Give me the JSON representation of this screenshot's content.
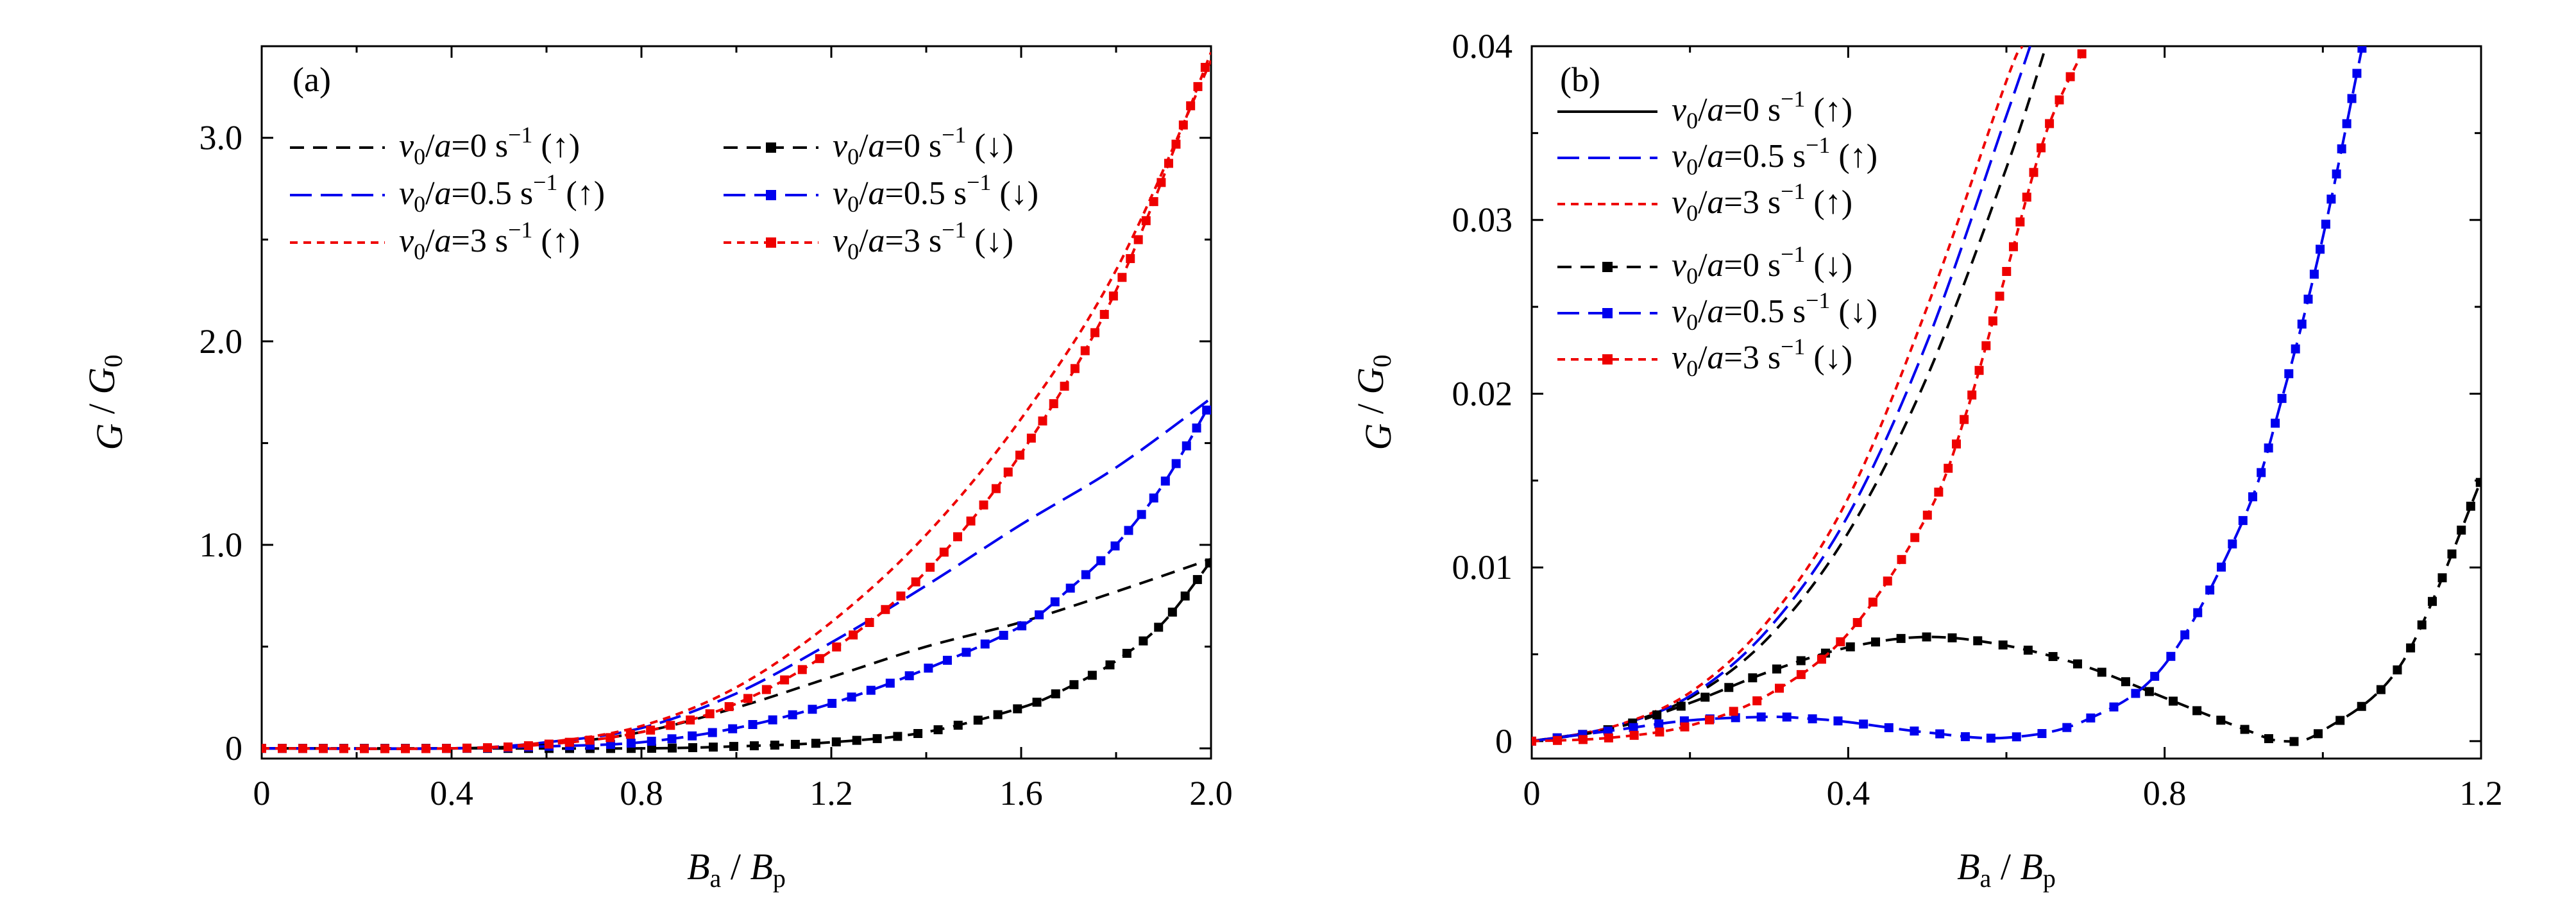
{
  "chart_data": [
    {
      "type": "line",
      "panel_label": "(a)",
      "xlabel": "B_a / B_p",
      "ylabel": "G / G_0",
      "xlim": [
        0,
        2.0
      ],
      "ylim": [
        -0.05,
        3.45
      ],
      "x_ticks": [
        "0",
        "0.4",
        "0.8",
        "1.2",
        "1.6",
        "2.0"
      ],
      "y_ticks": [
        "0",
        "1.0",
        "2.0",
        "3.0"
      ],
      "x_tick_values": [
        0,
        0.4,
        0.8,
        1.2,
        1.6,
        2.0
      ],
      "y_tick_values": [
        0,
        1.0,
        2.0,
        3.0
      ],
      "legend": [
        {
          "label": "v_0/a=0 s^-1 (↑)",
          "color": "#000000",
          "style": "dashed",
          "marker": false
        },
        {
          "label": "v_0/a=0.5 s^-1 (↑)",
          "color": "#0000ee",
          "style": "longdash",
          "marker": false
        },
        {
          "label": "v_0/a=3 s^-1 (↑)",
          "color": "#ee0000",
          "style": "shortdash",
          "marker": false
        },
        {
          "label": "v_0/a=0 s^-1 (↓)",
          "color": "#000000",
          "style": "dashed",
          "marker": true
        },
        {
          "label": "v_0/a=0.5 s^-1 (↓)",
          "color": "#0000ee",
          "style": "longdash",
          "marker": true
        },
        {
          "label": "v_0/a=3 s^-1 (↓)",
          "color": "#ee0000",
          "style": "shortdash",
          "marker": true
        }
      ],
      "series": [
        {
          "color": "#000000",
          "style": "dashed",
          "marker": false,
          "x": [
            0,
            0.4,
            0.6,
            0.8,
            1.0,
            1.2,
            1.4,
            1.6,
            1.8,
            2.0
          ],
          "y": [
            0,
            0.0,
            0.02,
            0.08,
            0.2,
            0.35,
            0.5,
            0.62,
            0.77,
            0.93
          ]
        },
        {
          "color": "#0000ee",
          "style": "longdash",
          "marker": false,
          "x": [
            0,
            0.4,
            0.6,
            0.8,
            1.0,
            1.2,
            1.4,
            1.6,
            1.8,
            2.0
          ],
          "y": [
            0,
            0.0,
            0.03,
            0.1,
            0.27,
            0.52,
            0.8,
            1.1,
            1.38,
            1.72
          ]
        },
        {
          "color": "#ee0000",
          "style": "shortdash",
          "marker": false,
          "x": [
            0,
            0.4,
            0.6,
            0.8,
            1.0,
            1.2,
            1.4,
            1.6,
            1.8,
            2.0
          ],
          "y": [
            0,
            0.0,
            0.03,
            0.11,
            0.3,
            0.62,
            1.05,
            1.62,
            2.35,
            3.38
          ]
        },
        {
          "color": "#000000",
          "style": "dashed",
          "marker": true,
          "x": [
            0,
            0.4,
            0.8,
            1.0,
            1.2,
            1.4,
            1.6,
            1.7,
            1.8,
            1.9,
            2.0
          ],
          "y": [
            0,
            0.0,
            0.0,
            0.01,
            0.03,
            0.08,
            0.2,
            0.3,
            0.43,
            0.62,
            0.92
          ]
        },
        {
          "color": "#0000ee",
          "style": "longdash",
          "marker": true,
          "x": [
            0,
            0.4,
            0.6,
            0.8,
            1.0,
            1.2,
            1.4,
            1.6,
            1.7,
            1.8,
            1.9,
            2.0
          ],
          "y": [
            0,
            0.0,
            0.01,
            0.03,
            0.1,
            0.22,
            0.39,
            0.6,
            0.78,
            1.0,
            1.3,
            1.7
          ]
        },
        {
          "color": "#ee0000",
          "style": "shortdash",
          "marker": true,
          "x": [
            0,
            0.4,
            0.6,
            0.8,
            1.0,
            1.2,
            1.4,
            1.6,
            1.8,
            2.0
          ],
          "y": [
            0,
            0.0,
            0.02,
            0.08,
            0.22,
            0.48,
            0.87,
            1.45,
            2.25,
            3.42
          ]
        }
      ]
    },
    {
      "type": "line",
      "panel_label": "(b)",
      "xlabel": "B_a / B_p",
      "ylabel": "G / G_0",
      "xlim": [
        0,
        1.2
      ],
      "ylim": [
        -0.001,
        0.04
      ],
      "x_ticks": [
        "0",
        "0.4",
        "0.8",
        "1.2"
      ],
      "y_ticks": [
        "0",
        "0.01",
        "0.02",
        "0.03",
        "0.04"
      ],
      "x_tick_values": [
        0,
        0.4,
        0.8,
        1.2
      ],
      "y_tick_values": [
        0,
        0.01,
        0.02,
        0.03,
        0.04
      ],
      "legend": [
        {
          "label": "v_0/a=0 s^-1 (↑)",
          "color": "#000000",
          "style": "solid",
          "marker": false
        },
        {
          "label": "v_0/a=0.5 s^-1 (↑)",
          "color": "#0000ee",
          "style": "longdash",
          "marker": false
        },
        {
          "label": "v_0/a=3 s^-1 (↑)",
          "color": "#ee0000",
          "style": "shortdash",
          "marker": false
        },
        {
          "label": "v_0/a=0 s^-1(↓)",
          "color": "#000000",
          "style": "dashed",
          "marker": true
        },
        {
          "label": "v_0/a=0.5 s^-1(↓)",
          "color": "#0000ee",
          "style": "longdash",
          "marker": true
        },
        {
          "label": "v_0/a=3 s^-1(↓)",
          "color": "#ee0000",
          "style": "shortdash",
          "marker": true
        }
      ],
      "series": [
        {
          "color": "#000000",
          "style": "dashed",
          "marker": false,
          "x": [
            0,
            0.1,
            0.2,
            0.3,
            0.4,
            0.5,
            0.6,
            0.65
          ],
          "y": [
            0,
            0.0008,
            0.0025,
            0.006,
            0.012,
            0.021,
            0.033,
            0.04
          ]
        },
        {
          "color": "#0000ee",
          "style": "longdash",
          "marker": false,
          "x": [
            0,
            0.1,
            0.2,
            0.3,
            0.4,
            0.5,
            0.6,
            0.63
          ],
          "y": [
            0,
            0.0008,
            0.0026,
            0.0065,
            0.013,
            0.023,
            0.036,
            0.04
          ]
        },
        {
          "color": "#ee0000",
          "style": "shortdash",
          "marker": false,
          "x": [
            0,
            0.1,
            0.2,
            0.3,
            0.4,
            0.5,
            0.6,
            0.62
          ],
          "y": [
            0,
            0.0008,
            0.0028,
            0.007,
            0.014,
            0.025,
            0.038,
            0.04
          ]
        },
        {
          "color": "#000000",
          "style": "dashed",
          "marker": true,
          "x": [
            0,
            0.1,
            0.2,
            0.3,
            0.4,
            0.5,
            0.6,
            0.7,
            0.8,
            0.9,
            0.95,
            1.0,
            1.1,
            1.2
          ],
          "y": [
            0,
            0.0007,
            0.0022,
            0.004,
            0.0054,
            0.006,
            0.0055,
            0.0043,
            0.0025,
            0.0007,
            0.0,
            0.0006,
            0.0045,
            0.015
          ]
        },
        {
          "color": "#0000ee",
          "style": "longdash",
          "marker": true,
          "x": [
            0,
            0.1,
            0.2,
            0.3,
            0.35,
            0.4,
            0.5,
            0.6,
            0.7,
            0.8,
            0.9,
            0.95,
            1.0,
            1.05
          ],
          "y": [
            0,
            0.0006,
            0.0012,
            0.0014,
            0.0013,
            0.0011,
            0.0005,
            0.0002,
            0.0012,
            0.0044,
            0.0128,
            0.02,
            0.029,
            0.04
          ]
        },
        {
          "color": "#ee0000",
          "style": "shortdash",
          "marker": true,
          "x": [
            0,
            0.1,
            0.2,
            0.3,
            0.4,
            0.5,
            0.55,
            0.6,
            0.65,
            0.7
          ],
          "y": [
            0,
            0.0002,
            0.0009,
            0.0027,
            0.0062,
            0.013,
            0.019,
            0.027,
            0.035,
            0.04
          ]
        }
      ]
    }
  ]
}
